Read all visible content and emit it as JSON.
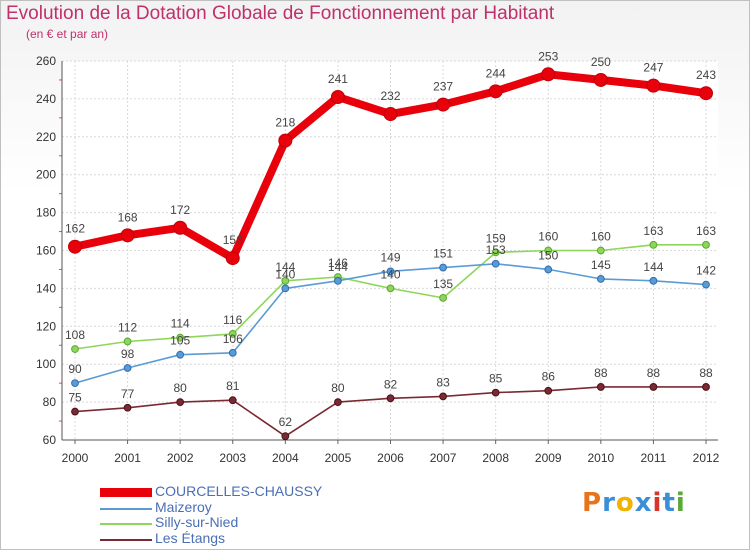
{
  "header": {
    "title": "Evolution de la Dotation Globale de Fonctionnement par Habitant",
    "subtitle": "(en € et par an)"
  },
  "logo": {
    "letters": [
      "P",
      "r",
      "o",
      "x",
      "i",
      "t",
      "i"
    ],
    "colors": [
      "#e8731a",
      "#3a8fd6",
      "#f0b400",
      "#3a8fd6",
      "#d8342c",
      "#3a8fd6",
      "#5aa83a"
    ]
  },
  "chart_data": {
    "type": "line",
    "title": "Evolution de la Dotation Globale de Fonctionnement par Habitant",
    "subtitle": "(en € et par an)",
    "xlabel": "",
    "ylabel": "",
    "x": [
      "2000",
      "2001",
      "2002",
      "2003",
      "2004",
      "2005",
      "2006",
      "2007",
      "2008",
      "2009",
      "2010",
      "2011",
      "2012"
    ],
    "ylim": [
      60,
      260
    ],
    "yticks": [
      60,
      80,
      100,
      120,
      140,
      160,
      180,
      200,
      220,
      240,
      260
    ],
    "grid": true,
    "legend": "bottom-left",
    "series": [
      {
        "name": "COURCELLES-CHAUSSY",
        "color": "#e8000b",
        "values": [
          162,
          168,
          172,
          156,
          218,
          241,
          232,
          237,
          244,
          253,
          250,
          247,
          243
        ]
      },
      {
        "name": "Maizeroy",
        "color": "#5b9bd5",
        "values": [
          90,
          98,
          105,
          106,
          140,
          144,
          149,
          151,
          153,
          150,
          145,
          144,
          142
        ]
      },
      {
        "name": "Silly-sur-Nied",
        "color": "#8ed65a",
        "values": [
          108,
          112,
          114,
          116,
          144,
          146,
          140,
          135,
          159,
          160,
          160,
          163,
          163
        ]
      },
      {
        "name": "Les Étangs",
        "color": "#7a2a33",
        "values": [
          75,
          77,
          80,
          81,
          62,
          80,
          82,
          83,
          85,
          86,
          88,
          88,
          88
        ]
      }
    ]
  }
}
